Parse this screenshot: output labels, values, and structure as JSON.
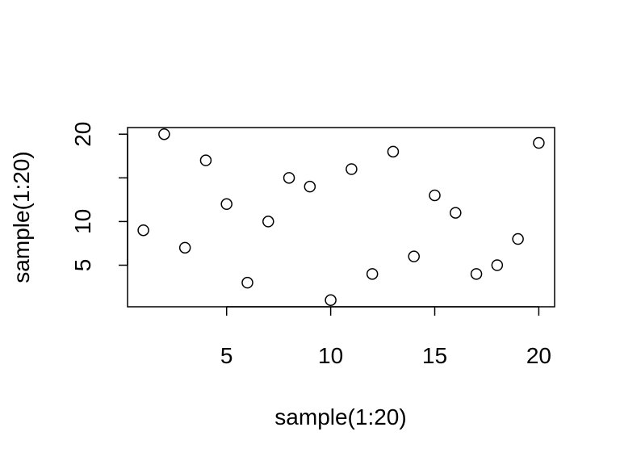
{
  "chart_data": {
    "type": "scatter",
    "title": "",
    "xlabel": "sample(1:20)",
    "ylabel": "sample(1:20)",
    "xlim": [
      0.24,
      20.76
    ],
    "ylim": [
      0.24,
      20.76
    ],
    "x_ticks": [
      5,
      10,
      15,
      20
    ],
    "y_ticks": [
      5,
      10,
      15,
      20
    ],
    "x_tick_labels": [
      "5",
      "10",
      "15",
      "20"
    ],
    "y_tick_labels": [
      "5",
      "10",
      "",
      "20"
    ],
    "grid": false,
    "legend": "none",
    "marker": "open-circle",
    "x": [
      1,
      2,
      3,
      4,
      5,
      6,
      7,
      8,
      9,
      10,
      11,
      12,
      13,
      14,
      15,
      16,
      17,
      18,
      19,
      20
    ],
    "y": [
      9,
      20,
      7,
      17,
      12,
      3,
      10,
      15,
      14,
      1,
      16,
      4,
      18,
      6,
      13,
      11,
      4,
      5,
      8,
      19
    ]
  }
}
